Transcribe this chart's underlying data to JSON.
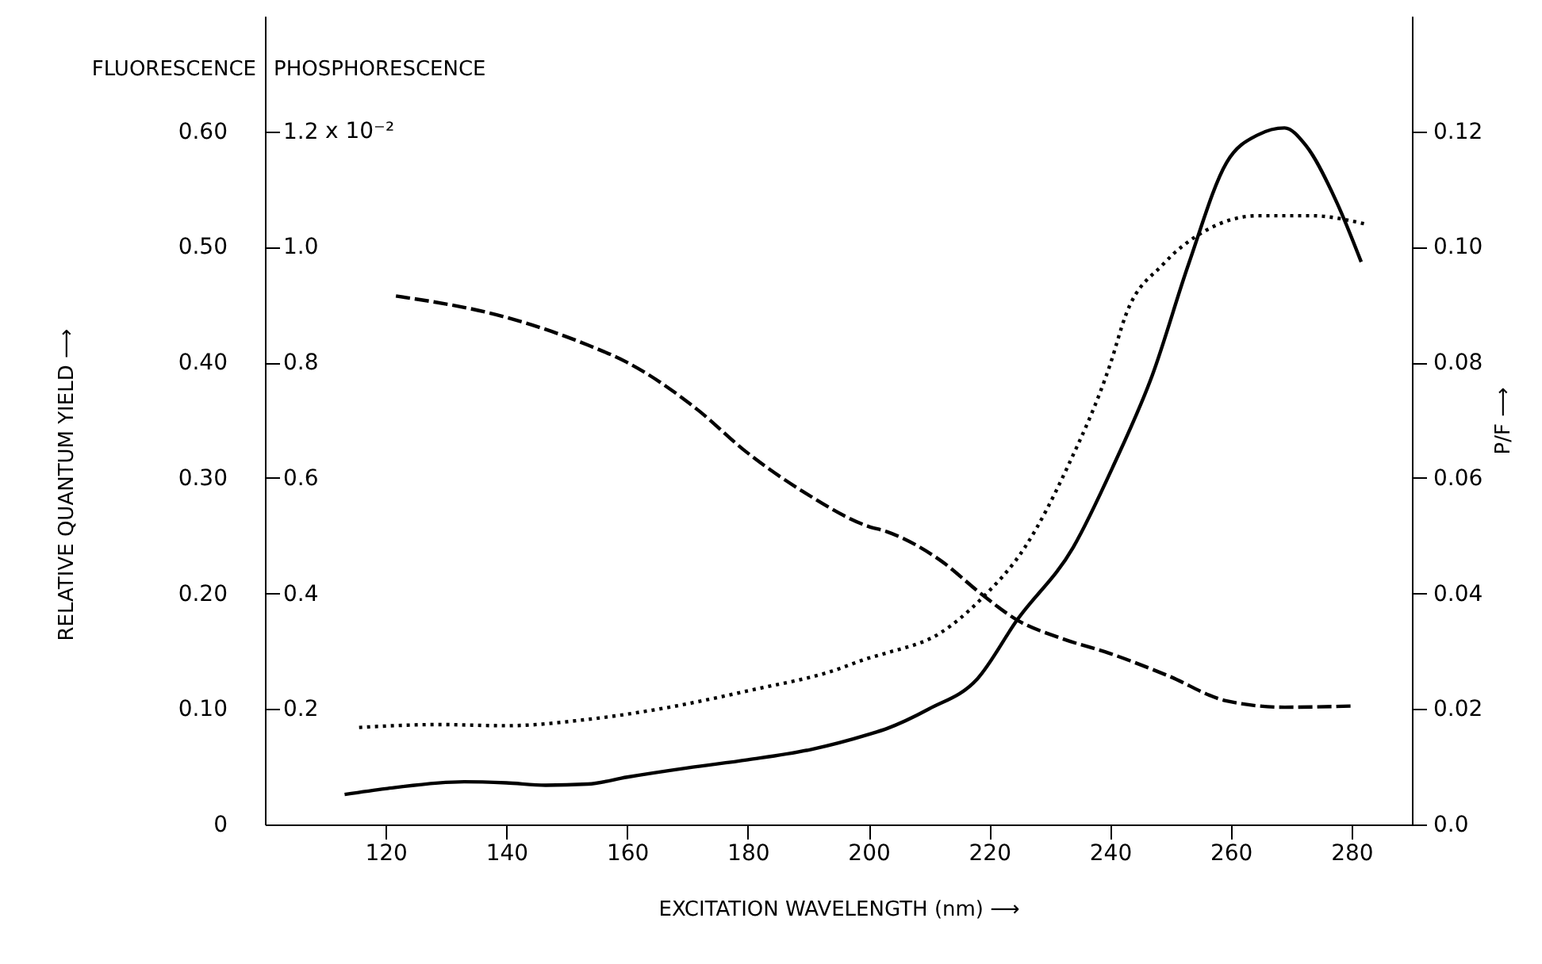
{
  "chart_data": {
    "type": "line",
    "xlabel": "EXCITATION   WAVELENGTH   (nm) ⟶",
    "ylabel": "FLUORESCENCE",
    "y3label": "PHOSPHORESCENCE",
    "y2label": "P/F ⟶",
    "annotations": [
      "RELATIVE   QUANTUM   YIELD ⟶",
      "x 10⁻²"
    ],
    "xlim": [
      100,
      290
    ],
    "xticks": [
      120,
      140,
      160,
      180,
      200,
      220,
      240,
      260,
      280
    ],
    "ylim": [
      0,
      0.7
    ],
    "yticks": [
      {
        "value": 0,
        "label": "0"
      },
      {
        "value": 0.1,
        "label": "0.10"
      },
      {
        "value": 0.2,
        "label": "0.20"
      },
      {
        "value": 0.3,
        "label": "0.30"
      },
      {
        "value": 0.4,
        "label": "0.40"
      },
      {
        "value": 0.5,
        "label": "0.50"
      },
      {
        "value": 0.6,
        "label": "0.60"
      }
    ],
    "y3lim": [
      0,
      1.4
    ],
    "y3ticks": [
      0.2,
      0.4,
      0.6,
      0.8,
      {
        "value": 1.0,
        "label": "1.0"
      },
      1.2
    ],
    "y2lim": [
      0,
      0.14
    ],
    "y2ticks": [
      {
        "value": 0,
        "label": "0.0"
      },
      0.02,
      0.04,
      0.06,
      0.08,
      {
        "value": 0.1,
        "label": "0.10"
      },
      0.12
    ],
    "grid": false,
    "marker": "none",
    "series": [
      {
        "color": "#000000",
        "line_style": "solid",
        "axis": "y",
        "x": [
          113.2,
          120,
          133,
          140,
          146.5,
          153.5,
          160,
          170,
          180,
          190.5,
          200,
          203,
          210,
          218,
          224.6,
          233.9,
          240.5,
          247,
          253,
          259.3,
          264.5,
          268.9,
          272.4,
          277.6,
          281.6
        ],
        "values": [
          0.026,
          0.031,
          0.037,
          0.036,
          0.034,
          0.035,
          0.041,
          0.049,
          0.056,
          0.065,
          0.078,
          0.083,
          0.1,
          0.126,
          0.177,
          0.24,
          0.31,
          0.389,
          0.485,
          0.573,
          0.597,
          0.603,
          0.588,
          0.538,
          0.487
        ]
      },
      {
        "color": "#000000",
        "line_style": "dotted",
        "axis": "y3",
        "x": [
          115.6,
          128.8,
          140,
          153.5,
          167.5,
          180.7,
          193.8,
          200,
          203,
          211.8,
          218.8,
          225.9,
          233,
          240,
          242.6,
          248.8,
          255.8,
          264.5,
          273.3,
          282.5
        ],
        "values": [
          0.168,
          0.173,
          0.171,
          0.182,
          0.204,
          0.233,
          0.265,
          0.288,
          0.297,
          0.331,
          0.392,
          0.48,
          0.62,
          0.796,
          0.882,
          0.97,
          1.028,
          1.054,
          1.054,
          1.039
        ]
      },
      {
        "color": "#000000",
        "line_style": "dashed",
        "axis": "y2",
        "x": [
          121.7,
          140,
          153.5,
          160,
          171.8,
          179.5,
          189.2,
          200,
          203,
          211.8,
          218.8,
          224.6,
          232,
          240,
          249.5,
          259.3,
          268.9,
          280
        ],
        "values": [
          0.0915,
          0.0878,
          0.083,
          0.08,
          0.0717,
          0.0647,
          0.0576,
          0.0516,
          0.0507,
          0.0458,
          0.0398,
          0.0354,
          0.0322,
          0.0296,
          0.0258,
          0.0214,
          0.0203,
          0.0205
        ]
      }
    ]
  }
}
